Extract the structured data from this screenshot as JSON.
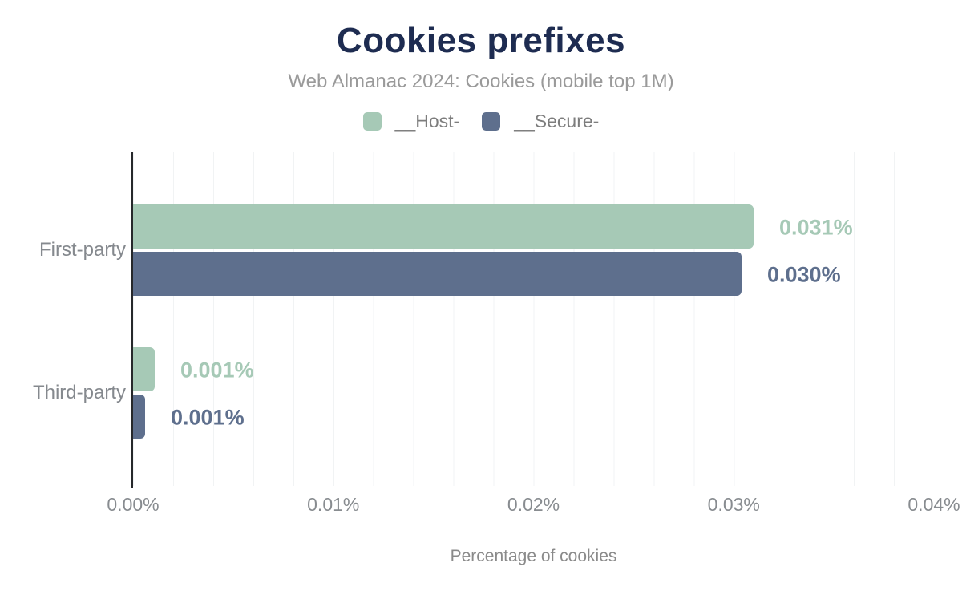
{
  "title": "Cookies prefixes",
  "subtitle": "Web Almanac 2024: Cookies (mobile top 1M)",
  "colors": {
    "host_green": "#a6c9b6",
    "secure_slate": "#5e6f8d",
    "title_navy": "#1e2c51",
    "gridline": "#f1f3f4",
    "axis_line": "#26282b"
  },
  "legend": [
    {
      "label": "__Host-",
      "color": "#a6c9b6"
    },
    {
      "label": "__Secure-",
      "color": "#5e6f8d"
    }
  ],
  "xaxis": {
    "title": "Percentage of cookies",
    "ticks": [
      "0.00%",
      "0.01%",
      "0.02%",
      "0.03%",
      "0.04%"
    ],
    "min": 0,
    "max": 0.04
  },
  "chart_data": {
    "type": "bar",
    "orientation": "horizontal",
    "title": "Cookies prefixes",
    "subtitle": "Web Almanac 2024: Cookies (mobile top 1M)",
    "xlabel": "Percentage of cookies",
    "ylabel": "",
    "xlim": [
      0,
      0.04
    ],
    "grid": "vertical minor gridlines every 0.002%",
    "legend_position": "top-center",
    "categories": [
      "First-party",
      "Third-party"
    ],
    "series": [
      {
        "name": "__Host-",
        "color": "#a6c9b6",
        "values": [
          0.031,
          0.001
        ],
        "labels": [
          "0.031%",
          "0.001%"
        ],
        "draw_values": [
          0.031,
          0.0011
        ]
      },
      {
        "name": "__Secure-",
        "color": "#5e6f8d",
        "values": [
          0.03,
          0.001
        ],
        "labels": [
          "0.030%",
          "0.001%"
        ],
        "draw_values": [
          0.0304,
          0.0006
        ]
      }
    ]
  }
}
